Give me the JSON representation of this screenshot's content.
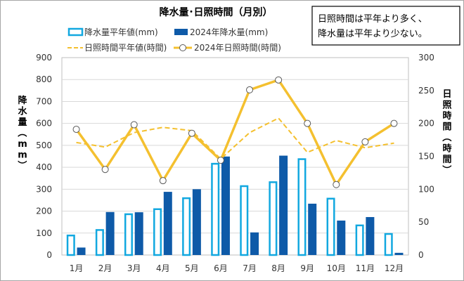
{
  "chart_data": {
    "type": "bar",
    "title": "降水量･日照時間（月別）",
    "annotation": [
      "日照時間は平年より多く、",
      "降水量は平年より少ない。"
    ],
    "categories": [
      "1月",
      "2月",
      "3月",
      "4月",
      "5月",
      "6月",
      "7月",
      "8月",
      "9月",
      "10月",
      "11月",
      "12月"
    ],
    "ylabel": "降水量（mm）",
    "y2label": "日照時間（時間）",
    "ylim": [
      0,
      900
    ],
    "y2lim": [
      0,
      300
    ],
    "yticks": [
      0,
      100,
      200,
      300,
      400,
      500,
      600,
      700,
      800,
      900
    ],
    "y2ticks": [
      0,
      50,
      100,
      150,
      200,
      250,
      300
    ],
    "grid": true,
    "legend_position": "top",
    "series": [
      {
        "name": "降水量平年値(mm)",
        "type": "bar",
        "axis": "left",
        "style": "outline",
        "color": "#12a8e0",
        "values": [
          93,
          118,
          190,
          213,
          263,
          420,
          318,
          336,
          441,
          261,
          139,
          100
        ]
      },
      {
        "name": "2024年降水量(mm)",
        "type": "bar",
        "axis": "left",
        "style": "filled",
        "color": "#0e5aa8",
        "values": [
          34,
          196,
          195,
          288,
          300,
          449,
          103,
          453,
          234,
          157,
          173,
          10
        ]
      },
      {
        "name": "日照時間平年値(時間)",
        "type": "line",
        "axis": "right",
        "style": "dashed",
        "color": "#f4c02f",
        "values": [
          171,
          164,
          186,
          194,
          189,
          146,
          186,
          208,
          156,
          174,
          163,
          170
        ]
      },
      {
        "name": "2024年日照時間(時間)",
        "type": "line",
        "axis": "right",
        "style": "solid-markers",
        "color": "#f4c02f",
        "values": [
          191,
          130,
          198,
          113,
          185,
          144,
          251,
          266,
          200,
          107,
          172,
          200
        ]
      }
    ]
  }
}
